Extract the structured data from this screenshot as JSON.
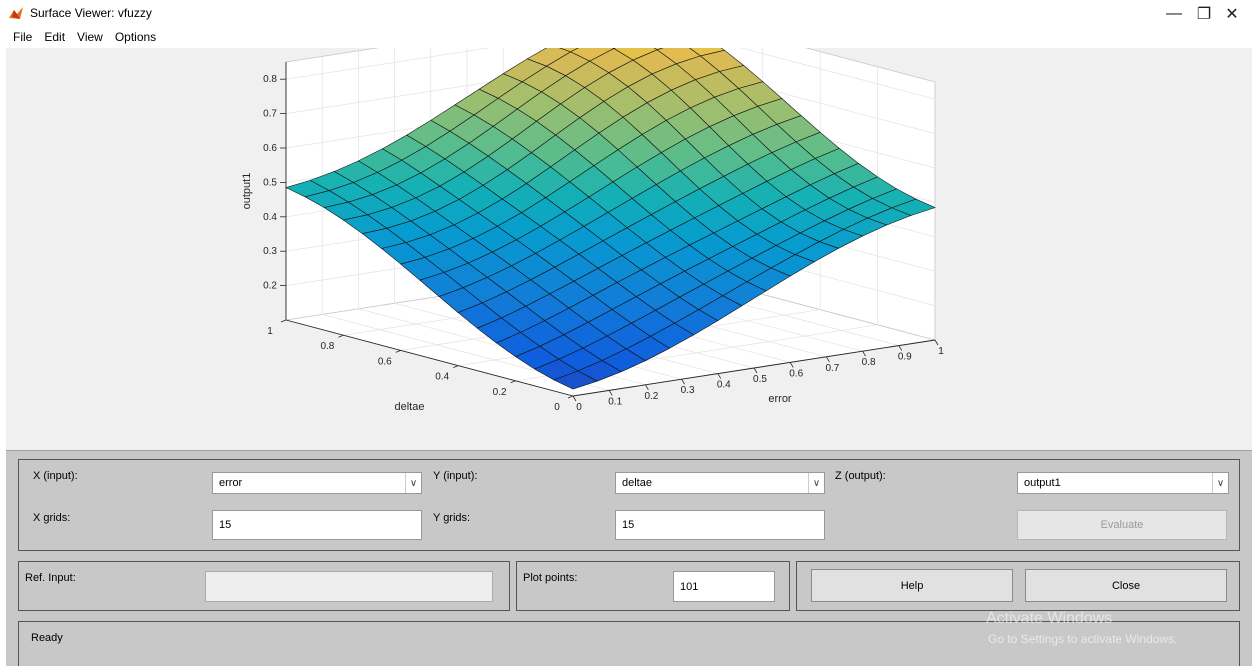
{
  "window": {
    "title": "Surface Viewer: vfuzzy",
    "minimize_glyph": "—",
    "restore_glyph": "❐",
    "close_glyph": "✕"
  },
  "menu": [
    "File",
    "Edit",
    "View",
    "Options"
  ],
  "chart_data": {
    "type": "surface",
    "xlabel": "error",
    "ylabel": "deltae",
    "zlabel": "output1",
    "x_ticks": [
      "0",
      "0.1",
      "0.2",
      "0.3",
      "0.4",
      "0.5",
      "0.6",
      "0.7",
      "0.8",
      "0.9",
      "1"
    ],
    "y_ticks": [
      "0",
      "0.2",
      "0.4",
      "0.6",
      "0.8",
      "1"
    ],
    "z_ticks": [
      "0.2",
      "0.3",
      "0.4",
      "0.5",
      "0.6",
      "0.7",
      "0.8"
    ],
    "xlim": [
      0,
      1
    ],
    "ylim": [
      0,
      1
    ],
    "zlim": [
      0.1,
      0.85
    ],
    "grid": 15,
    "colormap": "parula",
    "surface_description_values": {
      "z_at_x0_y0": 0.15,
      "z_at_x1_y1": 0.85,
      "z_at_x0_y1": 0.47,
      "z_at_x1_y0": 0.47
    }
  },
  "controls": {
    "x_input_label": "X (input):",
    "x_input_value": "error",
    "y_input_label": "Y (input):",
    "y_input_value": "deltae",
    "z_output_label": "Z (output):",
    "z_output_value": "output1",
    "x_grids_label": "X grids:",
    "x_grids_value": "15",
    "y_grids_label": "Y grids:",
    "y_grids_value": "15",
    "evaluate_label": "Evaluate",
    "ref_input_label": "Ref. Input:",
    "ref_input_value": "",
    "plot_points_label": "Plot points:",
    "plot_points_value": "101",
    "help_label": "Help",
    "close_label": "Close"
  },
  "status": {
    "text": "Ready"
  },
  "watermark": {
    "line1": "Activate Windows",
    "line2": "Go to Settings to activate Windows."
  },
  "colors": {
    "plot_background": "#f0f0f0",
    "panel_background": "#c8c8c8"
  }
}
